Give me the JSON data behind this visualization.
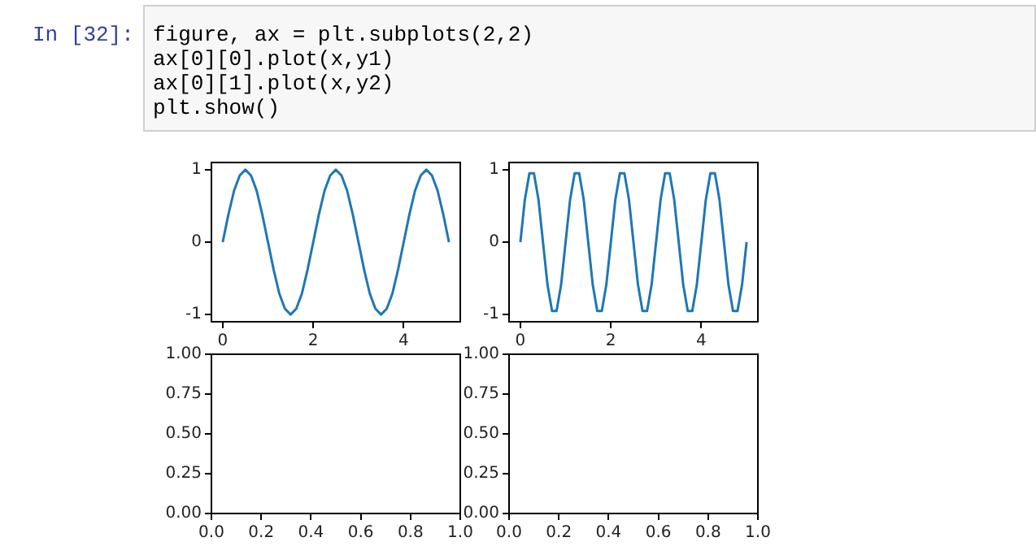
{
  "chart_data": [
    {
      "type": "line",
      "annotations": [
        "In [32]:",
        "figure, ax = plt.subplots(2,2)",
        "ax[0][0].plot(x,y1)",
        "ax[0][1].plot(x,y2)",
        "plt.show()"
      ],
      "xlim": [
        -0.25,
        5.25
      ],
      "ylim": [
        -1.1,
        1.1
      ],
      "xticks": [
        0,
        2,
        4
      ],
      "yticks": [
        -1,
        0,
        1
      ],
      "series": [
        {
          "color": "#1f77b4",
          "x": [
            0,
            0.125,
            0.25,
            0.375,
            0.5,
            0.625,
            0.75,
            0.875,
            1,
            1.125,
            1.25,
            1.375,
            1.5,
            1.625,
            1.75,
            1.875,
            2,
            2.125,
            2.25,
            2.375,
            2.5,
            2.625,
            2.75,
            2.875,
            3,
            3.125,
            3.25,
            3.375,
            3.5,
            3.625,
            3.75,
            3.875,
            4,
            4.125,
            4.25,
            4.375,
            4.5,
            4.625,
            4.75,
            4.875,
            5
          ],
          "values": [
            0,
            0.38,
            0.71,
            0.92,
            1,
            0.92,
            0.71,
            0.38,
            0,
            -0.38,
            -0.71,
            -0.92,
            -1,
            -0.92,
            -0.71,
            -0.38,
            0,
            0.38,
            0.71,
            0.92,
            1,
            0.92,
            0.71,
            0.38,
            0,
            -0.38,
            -0.71,
            -0.92,
            -1,
            -0.92,
            -0.71,
            -0.38,
            0,
            0.38,
            0.71,
            0.92,
            1,
            0.92,
            0.71,
            0.38,
            0
          ]
        }
      ]
    },
    {
      "type": "line",
      "xlim": [
        -0.25,
        5.25
      ],
      "ylim": [
        -1.1,
        1.1
      ],
      "xticks": [
        0,
        2,
        4
      ],
      "yticks": [
        -1,
        0,
        1
      ],
      "series": [
        {
          "color": "#1f77b4",
          "x": [
            0,
            0.1,
            0.2,
            0.3,
            0.4,
            0.5,
            0.6,
            0.7,
            0.8,
            0.9,
            1,
            1.1,
            1.2,
            1.3,
            1.4,
            1.5,
            1.6,
            1.7,
            1.8,
            1.9,
            2,
            2.1,
            2.2,
            2.3,
            2.4,
            2.5,
            2.6,
            2.7,
            2.8,
            2.9,
            3,
            3.1,
            3.2,
            3.3,
            3.4,
            3.5,
            3.6,
            3.7,
            3.8,
            3.9,
            4,
            4.1,
            4.2,
            4.3,
            4.4,
            4.5,
            4.6,
            4.7,
            4.8,
            4.9,
            5
          ],
          "values": [
            0,
            0.59,
            0.95,
            0.95,
            0.59,
            0,
            -0.59,
            -0.95,
            -0.95,
            -0.59,
            0,
            0.59,
            0.95,
            0.95,
            0.59,
            0,
            -0.59,
            -0.95,
            -0.95,
            -0.59,
            0,
            0.59,
            0.95,
            0.95,
            0.59,
            0,
            -0.59,
            -0.95,
            -0.95,
            -0.59,
            0,
            0.59,
            0.95,
            0.95,
            0.59,
            0,
            -0.59,
            -0.95,
            -0.95,
            -0.59,
            0,
            0.59,
            0.95,
            0.95,
            0.59,
            0,
            -0.59,
            -0.95,
            -0.95,
            -0.59,
            0
          ]
        }
      ]
    },
    {
      "type": "line",
      "xlim": [
        0,
        1
      ],
      "ylim": [
        0,
        1
      ],
      "xticks": [
        {
          "value": 0,
          "label": "0.0"
        },
        {
          "value": 0.2,
          "label": "0.2"
        },
        {
          "value": 0.4,
          "label": "0.4"
        },
        {
          "value": 0.6,
          "label": "0.6"
        },
        {
          "value": 0.8,
          "label": "0.8"
        },
        {
          "value": 1,
          "label": "1.0"
        }
      ],
      "yticks": [
        {
          "value": 0,
          "label": "0.00"
        },
        {
          "value": 0.25,
          "label": "0.25"
        },
        {
          "value": 0.5,
          "label": "0.50"
        },
        {
          "value": 0.75,
          "label": "0.75"
        },
        {
          "value": 1,
          "label": "1.00"
        }
      ]
    },
    {
      "type": "line",
      "xlim": [
        0,
        1
      ],
      "ylim": [
        0,
        1
      ],
      "xticks": [
        {
          "value": 0,
          "label": "0.0"
        },
        {
          "value": 0.2,
          "label": "0.2"
        },
        {
          "value": 0.4,
          "label": "0.4"
        },
        {
          "value": 0.6,
          "label": "0.6"
        },
        {
          "value": 0.8,
          "label": "0.8"
        },
        {
          "value": 1,
          "label": "1.0"
        }
      ],
      "yticks": [
        {
          "value": 0,
          "label": "0.00"
        },
        {
          "value": 0.25,
          "label": "0.25"
        },
        {
          "value": 0.5,
          "label": "0.50"
        },
        {
          "value": 0.75,
          "label": "0.75"
        },
        {
          "value": 1,
          "label": "1.00"
        }
      ]
    }
  ]
}
